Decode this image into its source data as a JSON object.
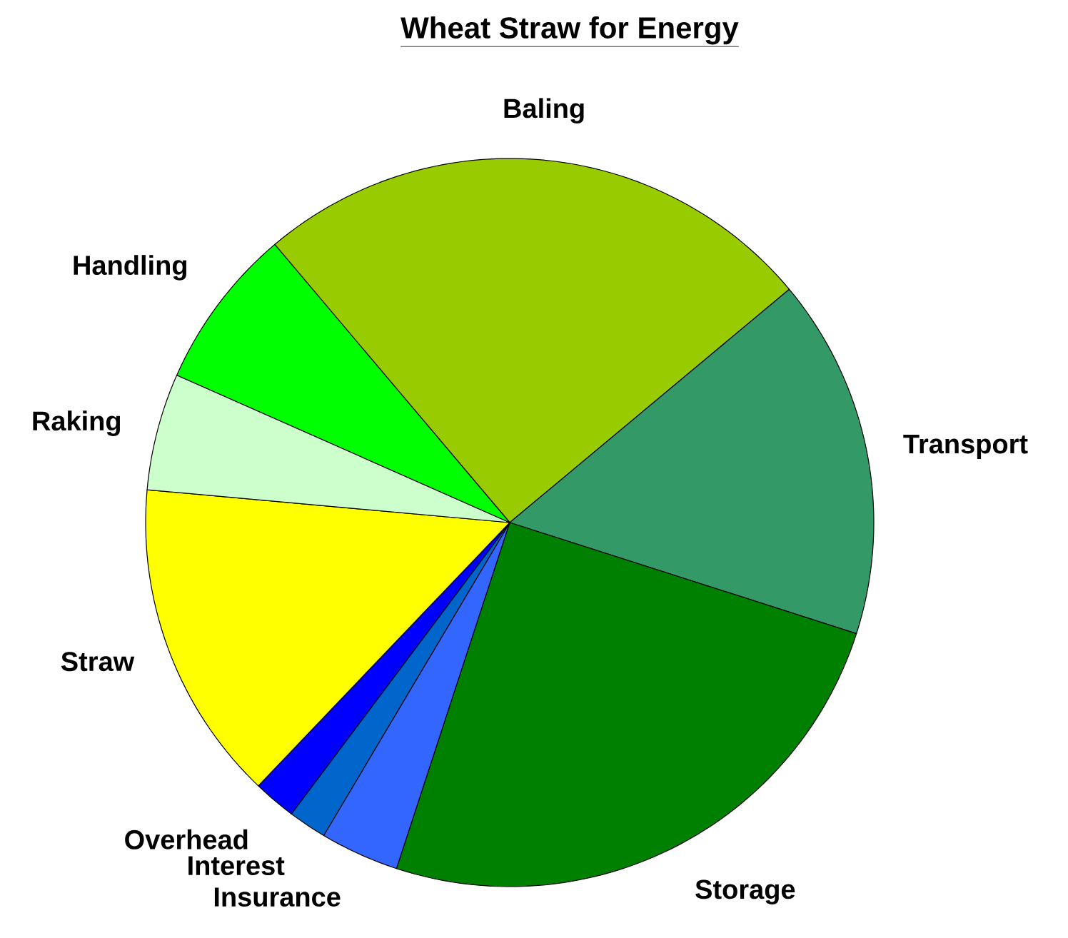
{
  "chart_data": {
    "type": "pie",
    "title": "Wheat Straw for Energy",
    "categories": [
      "Baling",
      "Transport",
      "Storage",
      "Insurance",
      "Interest",
      "Overhead",
      "Straw",
      "Raking",
      "Handling"
    ],
    "values": [
      25.1,
      16.0,
      25.1,
      3.5,
      1.7,
      1.9,
      14.3,
      5.2,
      7.2
    ],
    "colors": [
      "#99cc00",
      "#339966",
      "#008000",
      "#3366ff",
      "#0066cc",
      "#0000ff",
      "#ffff00",
      "#ccffcc",
      "#00ff00"
    ]
  }
}
